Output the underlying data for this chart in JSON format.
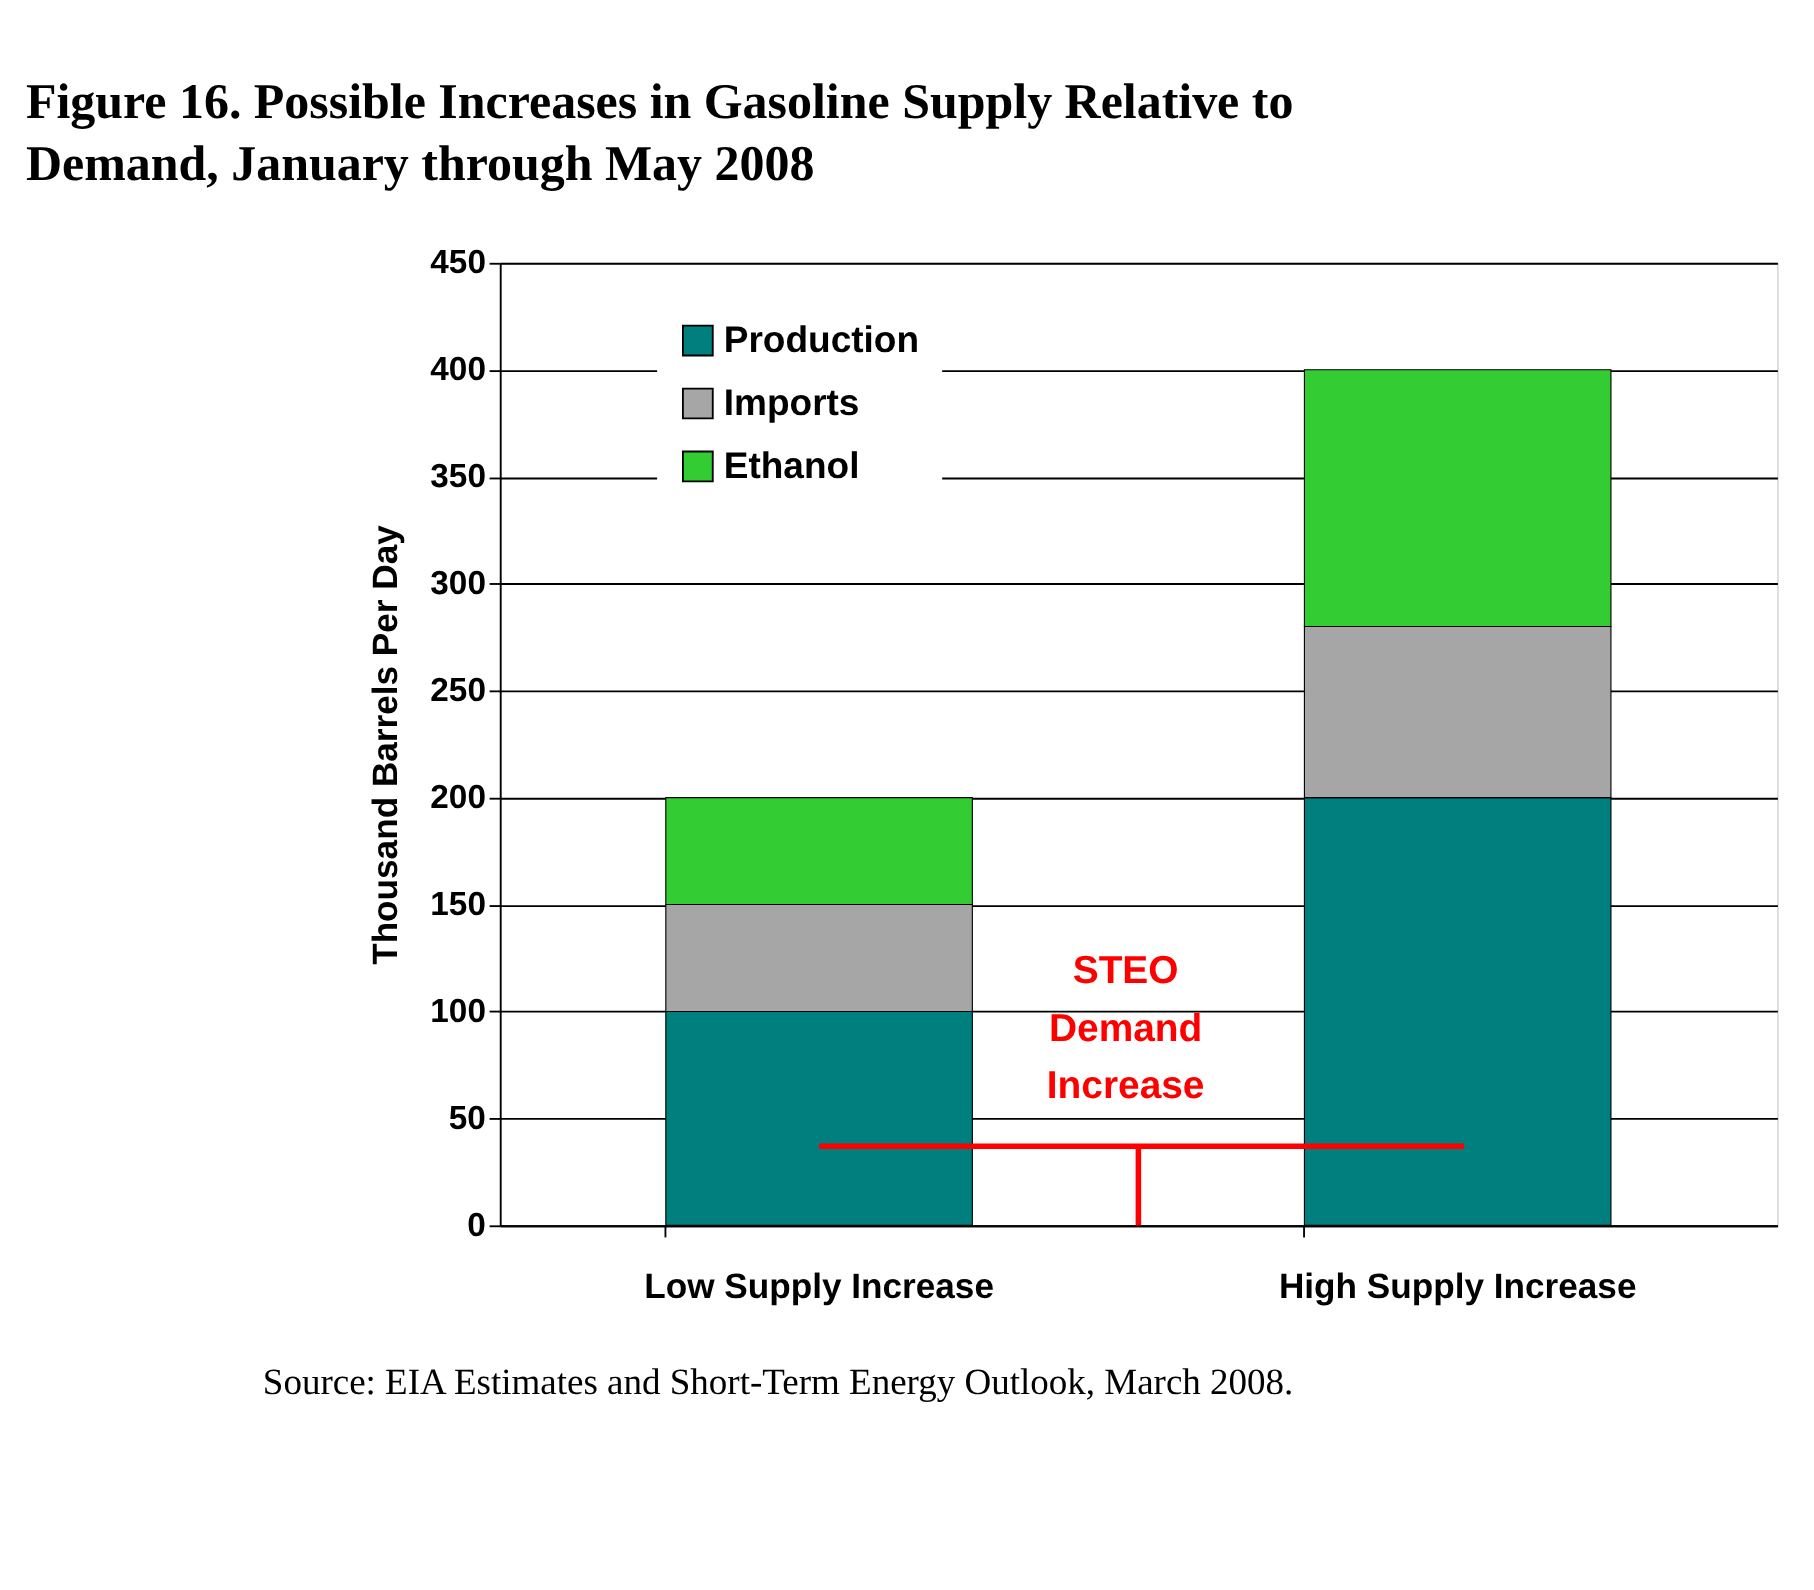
{
  "chart_data": {
    "type": "bar",
    "stacked": true,
    "title": "Figure 16. Possible Increases in Gasoline Supply Relative to Demand, January through May 2008",
    "ylabel": "Thousand Barrels Per Day",
    "categories": [
      "Low Supply Increase",
      "High Supply Increase"
    ],
    "series": [
      {
        "name": "Production",
        "color": "#007f7f",
        "values": [
          100,
          200
        ]
      },
      {
        "name": "Imports",
        "color": "#a6a6a6",
        "values": [
          50,
          80
        ]
      },
      {
        "name": "Ethanol",
        "color": "#33cc33",
        "values": [
          50,
          120
        ]
      }
    ],
    "ylim": [
      0,
      450
    ],
    "yticks": [
      0,
      50,
      100,
      150,
      200,
      250,
      300,
      350,
      400,
      450
    ],
    "grid": "y",
    "legend": "top left",
    "ref_lines": [
      {
        "axis": "y",
        "value": 37,
        "label": "STEO Demand Increase",
        "color": "#ff0000"
      }
    ],
    "annotations": [
      "Source:  EIA Estimates and Short-Term Energy Outlook, March  2008."
    ]
  }
}
